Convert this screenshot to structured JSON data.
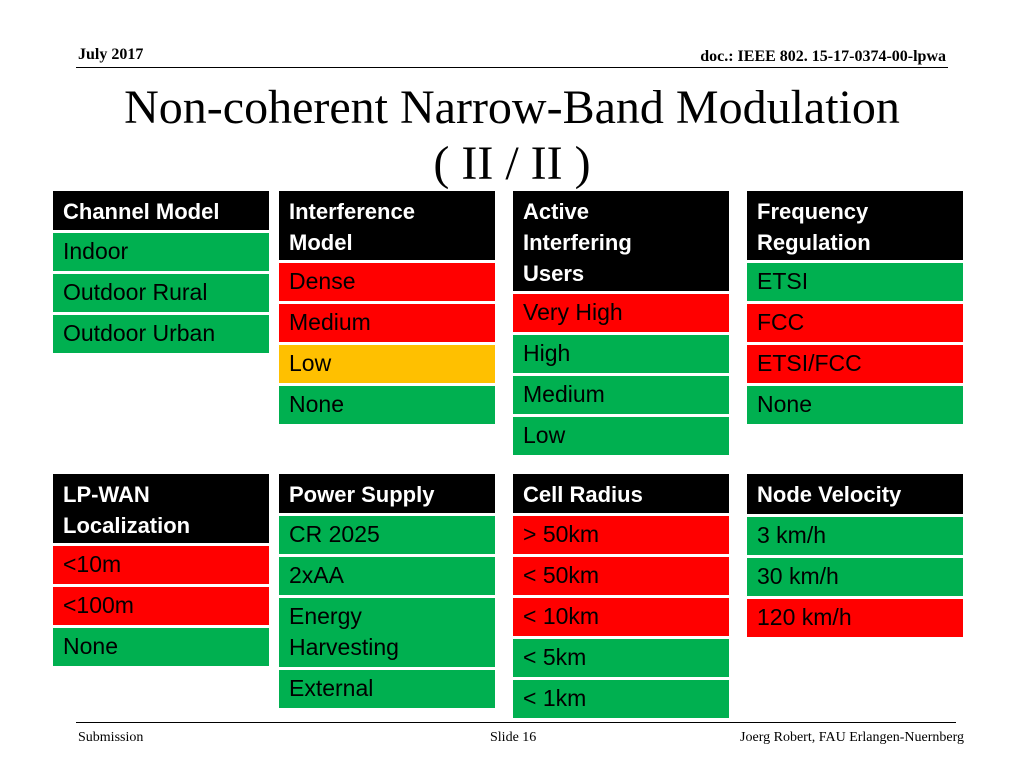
{
  "header": {
    "date": "July 2017",
    "doc_id": "doc.: IEEE 802. 15-17-0374-00-lpwa"
  },
  "title": {
    "line1": "Non-coherent Narrow-Band Modulation",
    "line2": "( II / II )"
  },
  "colors": {
    "header_bg": "#000000",
    "green": "#00B050",
    "red": "#FF0000",
    "yellow": "#FFC000"
  },
  "tables": {
    "channel_model": {
      "header": "Channel Model",
      "items": [
        {
          "label": "Indoor",
          "color": "green"
        },
        {
          "label": "Outdoor Rural",
          "color": "green"
        },
        {
          "label": "Outdoor Urban",
          "color": "green"
        }
      ]
    },
    "interference_model": {
      "header_line1": "Interference",
      "header_line2": "Model",
      "items": [
        {
          "label": "Dense",
          "color": "red"
        },
        {
          "label": "Medium",
          "color": "red"
        },
        {
          "label": "Low",
          "color": "yellow"
        },
        {
          "label": "None",
          "color": "green"
        }
      ]
    },
    "active_interfering_users": {
      "header_line1": "Active",
      "header_line2": "Interfering",
      "header_line3": "Users",
      "items": [
        {
          "label": "Very High",
          "color": "red"
        },
        {
          "label": "High",
          "color": "green"
        },
        {
          "label": "Medium",
          "color": "green"
        },
        {
          "label": "Low",
          "color": "green"
        }
      ]
    },
    "frequency_regulation": {
      "header_line1": "Frequency",
      "header_line2": "Regulation",
      "items": [
        {
          "label": "ETSI",
          "color": "green"
        },
        {
          "label": "FCC",
          "color": "red"
        },
        {
          "label": "ETSI/FCC",
          "color": "red"
        },
        {
          "label": "None",
          "color": "green"
        }
      ]
    },
    "lpwan_localization": {
      "header_line1": "LP-WAN",
      "header_line2": "Localization",
      "items": [
        {
          "label": "<10m",
          "color": "red"
        },
        {
          "label": "<100m",
          "color": "red"
        },
        {
          "label": "None",
          "color": "green"
        }
      ]
    },
    "power_supply": {
      "header": "Power Supply",
      "items": [
        {
          "label": "CR 2025",
          "color": "green"
        },
        {
          "label": "2xAA",
          "color": "green"
        },
        {
          "label_line1": "Energy",
          "label_line2": "Harvesting",
          "color": "green"
        },
        {
          "label": "External",
          "color": "green"
        }
      ]
    },
    "cell_radius": {
      "header": "Cell Radius",
      "items": [
        {
          "label": "> 50km",
          "color": "red"
        },
        {
          "label": "< 50km",
          "color": "red"
        },
        {
          "label": "< 10km",
          "color": "red"
        },
        {
          "label": "< 5km",
          "color": "green"
        },
        {
          "label": "< 1km",
          "color": "green"
        }
      ]
    },
    "node_velocity": {
      "header": "Node Velocity",
      "items": [
        {
          "label": "3 km/h",
          "color": "green"
        },
        {
          "label": "30 km/h",
          "color": "green"
        },
        {
          "label": "120 km/h",
          "color": "red"
        }
      ]
    }
  },
  "footer": {
    "left": "Submission",
    "center": "Slide 16",
    "right": "Joerg Robert, FAU Erlangen-Nuernberg"
  }
}
